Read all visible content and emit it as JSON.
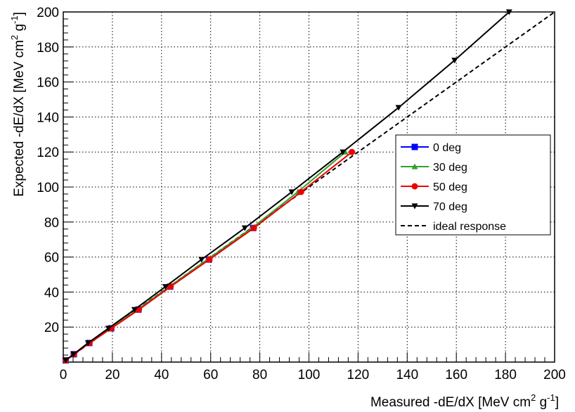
{
  "chart_data": {
    "type": "line",
    "xlabel_main": "Measured -dE/dX [MeV cm",
    "xlabel_sup1": "2",
    "xlabel_mid": " g",
    "xlabel_sup2": "-1",
    "xlabel_end": "]",
    "ylabel_main": "Expected -dE/dX [MeV cm",
    "ylabel_sup1": "2",
    "ylabel_mid": " g",
    "ylabel_sup2": "-1",
    "ylabel_end": "]",
    "xlim": [
      0,
      200
    ],
    "ylim": [
      0,
      200
    ],
    "xticks": [
      "0",
      "20",
      "40",
      "60",
      "80",
      "100",
      "120",
      "140",
      "160",
      "180",
      "200"
    ],
    "yticks": [
      "20",
      "40",
      "60",
      "80",
      "100",
      "120",
      "140",
      "160",
      "180",
      "200"
    ],
    "grid": true,
    "legend_position": "right",
    "series": [
      {
        "name": "0 deg",
        "color": "#0000ff",
        "marker": "square",
        "dashed": false,
        "x": [
          1.0,
          4.3,
          10.6,
          19.5,
          30.6,
          43.5,
          59.3,
          77.3
        ],
        "y": [
          1.0,
          4.5,
          10.9,
          19.3,
          30.0,
          43.1,
          58.6,
          76.6
        ]
      },
      {
        "name": "30 deg",
        "color": "#33a02c",
        "marker": "triangle-up",
        "dashed": false,
        "x": [
          1.0,
          4.3,
          10.5,
          19.2,
          30.3,
          43.2,
          58.7,
          76.8,
          95.5,
          114.8
        ],
        "y": [
          1.0,
          4.5,
          10.9,
          19.3,
          30.0,
          43.1,
          58.6,
          76.6,
          97.2,
          120.0
        ]
      },
      {
        "name": "50 deg",
        "color": "#ee0000",
        "marker": "circle",
        "dashed": false,
        "x": [
          1.0,
          4.4,
          10.7,
          19.6,
          30.8,
          43.7,
          59.5,
          77.6,
          96.8,
          117.5
        ],
        "y": [
          1.0,
          4.5,
          10.9,
          19.3,
          30.0,
          43.1,
          58.6,
          76.6,
          97.2,
          120.0
        ]
      },
      {
        "name": "70 deg",
        "color": "#000000",
        "marker": "triangle-down",
        "dashed": false,
        "x": [
          1.0,
          4.2,
          10.1,
          18.4,
          29.0,
          41.6,
          56.3,
          73.9,
          93.0,
          113.8,
          136.5,
          159.3,
          181.5
        ],
        "y": [
          1.0,
          4.5,
          10.9,
          19.3,
          30.0,
          43.1,
          58.6,
          76.6,
          97.2,
          120.0,
          145.4,
          172.4,
          200.0
        ]
      },
      {
        "name": "ideal response",
        "color": "#000000",
        "marker": "none",
        "dashed": true,
        "x": [
          0,
          200
        ],
        "y": [
          0,
          200
        ]
      }
    ]
  }
}
